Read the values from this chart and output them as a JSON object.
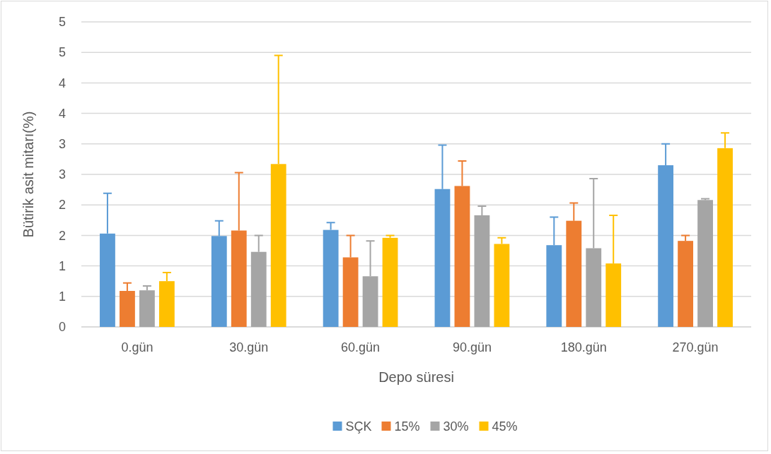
{
  "chart_data": {
    "type": "bar",
    "xlabel": "Depo süresi",
    "ylabel": "Bütirik asit mitarı(%)",
    "categories": [
      "0.gün",
      "30.gün",
      "60.gün",
      "90.gün",
      "180.gün",
      "270.gün"
    ],
    "series": [
      {
        "name": "SÇK",
        "color": "#5b9bd5",
        "values": [
          1.53,
          1.49,
          1.59,
          2.26,
          1.34,
          2.65
        ],
        "errors": [
          [
            1.53,
            2.19
          ],
          [
            1.49,
            1.74
          ],
          [
            1.59,
            1.71
          ],
          [
            2.26,
            2.98
          ],
          [
            1.34,
            1.8
          ],
          [
            2.65,
            3.0
          ]
        ]
      },
      {
        "name": "15%",
        "color": "#ed7d31",
        "values": [
          0.59,
          1.58,
          1.14,
          2.31,
          1.74,
          1.41
        ],
        "errors": [
          [
            0.59,
            0.72
          ],
          [
            1.58,
            2.53
          ],
          [
            1.14,
            1.5
          ],
          [
            2.31,
            2.72
          ],
          [
            1.74,
            2.03
          ],
          [
            1.41,
            1.5
          ]
        ]
      },
      {
        "name": "30%",
        "color": "#a5a5a5",
        "values": [
          0.6,
          1.23,
          0.83,
          1.83,
          1.29,
          2.08
        ],
        "errors": [
          [
            0.6,
            0.67
          ],
          [
            1.23,
            1.5
          ],
          [
            0.83,
            1.41
          ],
          [
            1.83,
            1.98
          ],
          [
            1.29,
            2.43
          ],
          [
            2.08,
            2.1
          ]
        ]
      },
      {
        "name": "45%",
        "color": "#ffc000",
        "values": [
          0.75,
          2.67,
          1.46,
          1.36,
          1.04,
          2.93
        ],
        "errors": [
          [
            0.75,
            0.89
          ],
          [
            2.67,
            4.45
          ],
          [
            1.46,
            1.5
          ],
          [
            1.36,
            1.46
          ],
          [
            1.04,
            1.83
          ],
          [
            2.93,
            3.18
          ]
        ]
      }
    ],
    "ylim": [
      0,
      5
    ],
    "yticks": [
      0,
      {
        "value": 0.5,
        "label": "1"
      },
      1,
      {
        "value": 1.5,
        "label": "2"
      },
      2,
      {
        "value": 2.5,
        "label": "3"
      },
      3,
      {
        "value": 3.5,
        "label": "4"
      },
      4,
      {
        "value": 4.5,
        "label": "5"
      },
      5
    ],
    "grid": "y",
    "legend": "bottom"
  }
}
